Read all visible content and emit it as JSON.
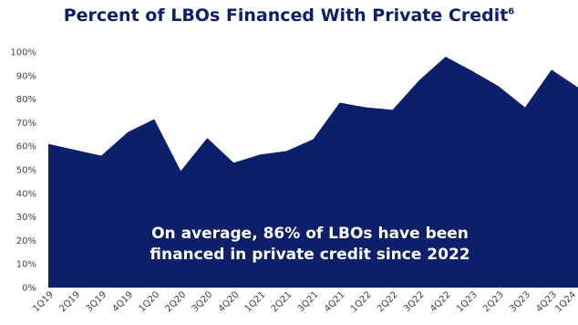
{
  "colors": {
    "title": "#0d1f6b",
    "area": "#0c1f6b",
    "axis_text": "#444444",
    "annotation_text": "#ffffff"
  },
  "chart_data": {
    "type": "area",
    "title": "Percent of LBOs Financed With Private Credit",
    "title_footnote": "6",
    "xlabel": "",
    "ylabel": "",
    "categories": [
      "1Q19",
      "2Q19",
      "3Q19",
      "4Q19",
      "1Q20",
      "2Q20",
      "3Q20",
      "4Q20",
      "1Q21",
      "2Q21",
      "3Q21",
      "4Q21",
      "1Q22",
      "2Q22",
      "3Q22",
      "4Q22",
      "1Q23",
      "2Q23",
      "3Q23",
      "4Q23",
      "1Q24"
    ],
    "series": [
      {
        "values": [
          61,
          58.5,
          56,
          66,
          71.5,
          49.5,
          63.5,
          53,
          56.5,
          58,
          63,
          78.5,
          76.5,
          75.5,
          88,
          98,
          92,
          85.5,
          76.5,
          92.5,
          85
        ]
      }
    ],
    "ylim": [
      0,
      100
    ],
    "yticks": [
      "0%",
      "10%",
      "20%",
      "30%",
      "40%",
      "50%",
      "60%",
      "70%",
      "80%",
      "90%",
      "100%"
    ],
    "grid": false,
    "legend": "none",
    "annotation": {
      "line1": "On average, 86% of LBOs have been",
      "line2": "financed in private credit since 2022"
    }
  }
}
